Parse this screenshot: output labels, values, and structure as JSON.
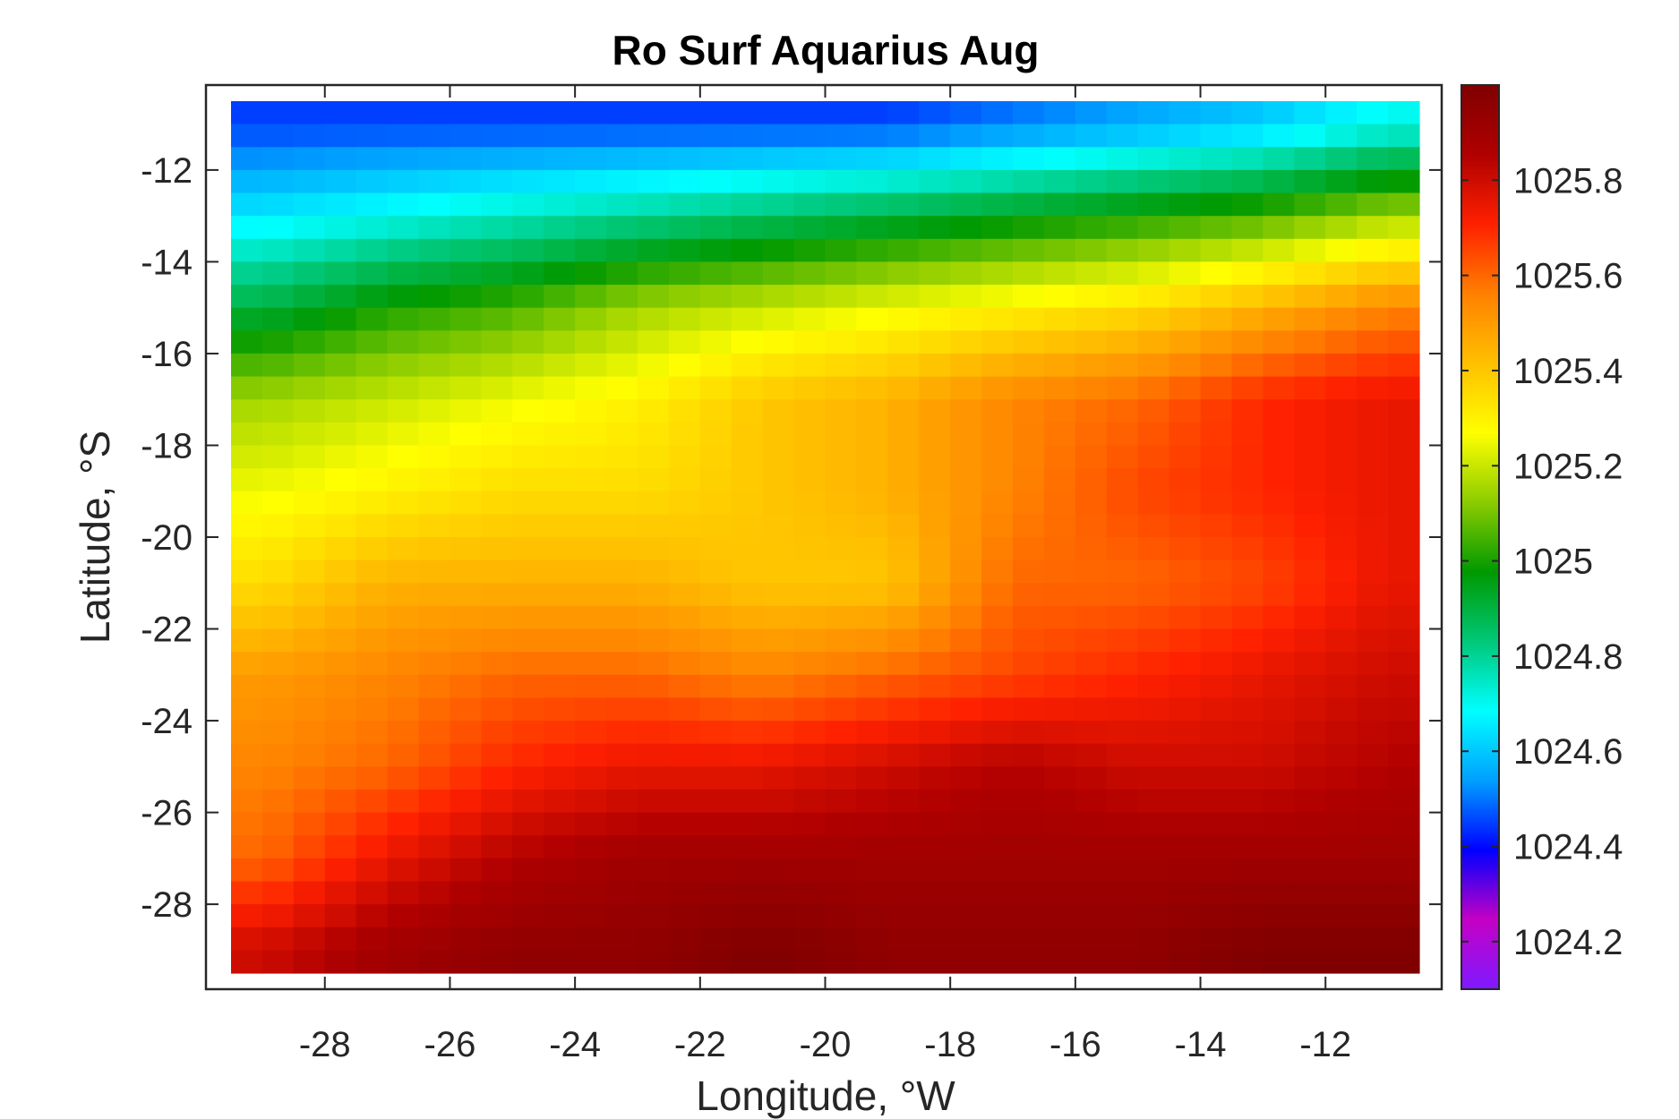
{
  "chart_data": {
    "type": "heatmap",
    "title": "Ro Surf Aquarius Aug",
    "xlabel": "Longitude, °W",
    "ylabel": "Latitude, °S",
    "xlim": [
      -29.5,
      -10.5
    ],
    "ylim": [
      -29.5,
      -10.5
    ],
    "xticks": [
      -28,
      -26,
      -24,
      -22,
      -20,
      -18,
      -16,
      -14,
      -12
    ],
    "yticks": [
      -12,
      -14,
      -16,
      -18,
      -20,
      -22,
      -24,
      -26,
      -28
    ],
    "colorbar": {
      "range": [
        1024.1,
        1026.0
      ],
      "ticks": [
        1024.2,
        1024.4,
        1024.6,
        1024.8,
        1025,
        1025.2,
        1025.4,
        1025.6,
        1025.8
      ],
      "tick_labels": [
        "1024.2",
        "1024.4",
        "1024.6",
        "1024.8",
        "1025",
        "1025.2",
        "1025.4",
        "1025.6",
        "1025.8"
      ],
      "colormap": [
        "#7f1aff",
        "#c400c4",
        "#0000ff",
        "#00a0ff",
        "#00ffff",
        "#00c878",
        "#009900",
        "#8ccc00",
        "#ffff00",
        "#ffc000",
        "#ff8000",
        "#ff2000",
        "#b00000",
        "#800000"
      ]
    },
    "grid": false,
    "lon": [
      -29,
      -27,
      -25,
      -23,
      -21,
      -19,
      -17,
      -15,
      -13,
      -11
    ],
    "lat": [
      -11,
      -13,
      -15,
      -17,
      -19,
      -21,
      -23,
      -25,
      -27,
      -29
    ],
    "values": [
      [
        1024.45,
        1024.45,
        1024.45,
        1024.45,
        1024.45,
        1024.45,
        1024.5,
        1024.55,
        1024.6,
        1024.7
      ],
      [
        1024.65,
        1024.7,
        1024.75,
        1024.8,
        1024.85,
        1024.9,
        1024.95,
        1025.0,
        1025.05,
        1025.15
      ],
      [
        1024.9,
        1025.0,
        1025.05,
        1025.15,
        1025.2,
        1025.25,
        1025.3,
        1025.35,
        1025.45,
        1025.55
      ],
      [
        1025.15,
        1025.2,
        1025.25,
        1025.3,
        1025.4,
        1025.45,
        1025.55,
        1025.6,
        1025.7,
        1025.75
      ],
      [
        1025.25,
        1025.3,
        1025.35,
        1025.35,
        1025.4,
        1025.45,
        1025.55,
        1025.65,
        1025.7,
        1025.75
      ],
      [
        1025.35,
        1025.45,
        1025.45,
        1025.45,
        1025.4,
        1025.4,
        1025.6,
        1025.6,
        1025.65,
        1025.75
      ],
      [
        1025.5,
        1025.55,
        1025.6,
        1025.6,
        1025.55,
        1025.6,
        1025.65,
        1025.7,
        1025.75,
        1025.8
      ],
      [
        1025.55,
        1025.6,
        1025.7,
        1025.75,
        1025.75,
        1025.8,
        1025.85,
        1025.8,
        1025.8,
        1025.85
      ],
      [
        1025.6,
        1025.75,
        1025.85,
        1025.9,
        1025.9,
        1025.9,
        1025.9,
        1025.9,
        1025.9,
        1025.9
      ],
      [
        1025.8,
        1025.9,
        1025.95,
        1025.95,
        1026.0,
        1025.95,
        1025.95,
        1025.95,
        1026.0,
        1026.0
      ]
    ]
  }
}
